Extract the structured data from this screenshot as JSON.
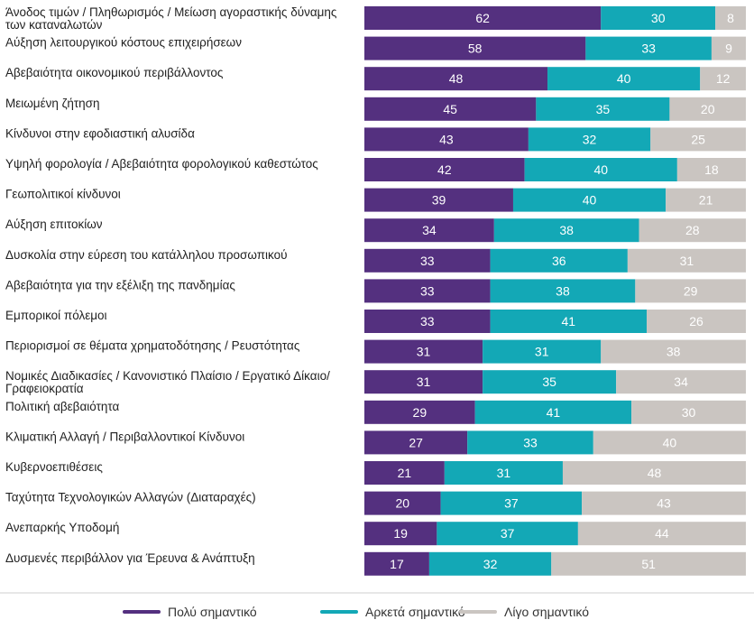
{
  "chart_data": {
    "type": "bar",
    "orientation": "horizontal",
    "stacked": true,
    "title": "",
    "xlabel": "",
    "ylabel": "",
    "xlim": [
      0,
      100
    ],
    "categories": [
      [
        "Άνοδος τιμών / Πληθωρισμός / Μείωση αγοραστικής δύναμης",
        "των καταναλωτών"
      ],
      [
        "Αύξηση λειτουργικού κόστους επιχειρήσεων"
      ],
      [
        "Αβεβαιότητα οικονομικού περιβάλλοντος"
      ],
      [
        "Μειωμένη ζήτηση"
      ],
      [
        "Κίνδυνοι στην εφοδιαστική αλυσίδα"
      ],
      [
        "Υψηλή φορολογία / Αβεβαιότητα φορολογικού καθεστώτος"
      ],
      [
        "Γεωπολιτικοί κίνδυνοι"
      ],
      [
        "Αύξηση επιτοκίων"
      ],
      [
        "Δυσκολία στην εύρεση του κατάλληλου προσωπικού"
      ],
      [
        "Αβεβαιότητα για την εξέλιξη της πανδημίας"
      ],
      [
        "Εμπορικοί πόλεμοι"
      ],
      [
        "Περιορισμοί σε θέματα χρηματοδότησης / Ρευστότητας"
      ],
      [
        "Νομικές Διαδικασίες / Κανονιστικό Πλαίσιο / Εργατικό Δίκαιο/",
        "Γραφειοκρατία"
      ],
      [
        "Πολιτική αβεβαιότητα"
      ],
      [
        "Κλιματική Αλλαγή / Περιβαλλοντικοί Κίνδυνοι"
      ],
      [
        "Κυβερνοεπιθέσεις"
      ],
      [
        "Ταχύτητα Τεχνολογικών Αλλαγών (Διαταραχές)"
      ],
      [
        "Ανεπαρκής Υποδομή"
      ],
      [
        "Δυσμενές περιβάλλον για Έρευνα & Ανάπτυξη"
      ]
    ],
    "series": [
      {
        "name": "Πολύ σημαντικό",
        "color": "#54307f",
        "values": [
          62,
          58,
          48,
          45,
          43,
          42,
          39,
          34,
          33,
          33,
          33,
          31,
          31,
          29,
          27,
          21,
          20,
          19,
          17
        ]
      },
      {
        "name": "Αρκετά σημαντικό",
        "color": "#13a8b6",
        "values": [
          30,
          33,
          40,
          35,
          32,
          40,
          40,
          38,
          36,
          38,
          41,
          31,
          35,
          41,
          33,
          31,
          37,
          37,
          32
        ]
      },
      {
        "name": "Λίγο σημαντικό",
        "color": "#cac5c1",
        "values": [
          8,
          9,
          12,
          20,
          25,
          18,
          21,
          28,
          31,
          29,
          26,
          38,
          34,
          30,
          40,
          48,
          43,
          44,
          51
        ]
      }
    ],
    "legend": "bottom"
  }
}
